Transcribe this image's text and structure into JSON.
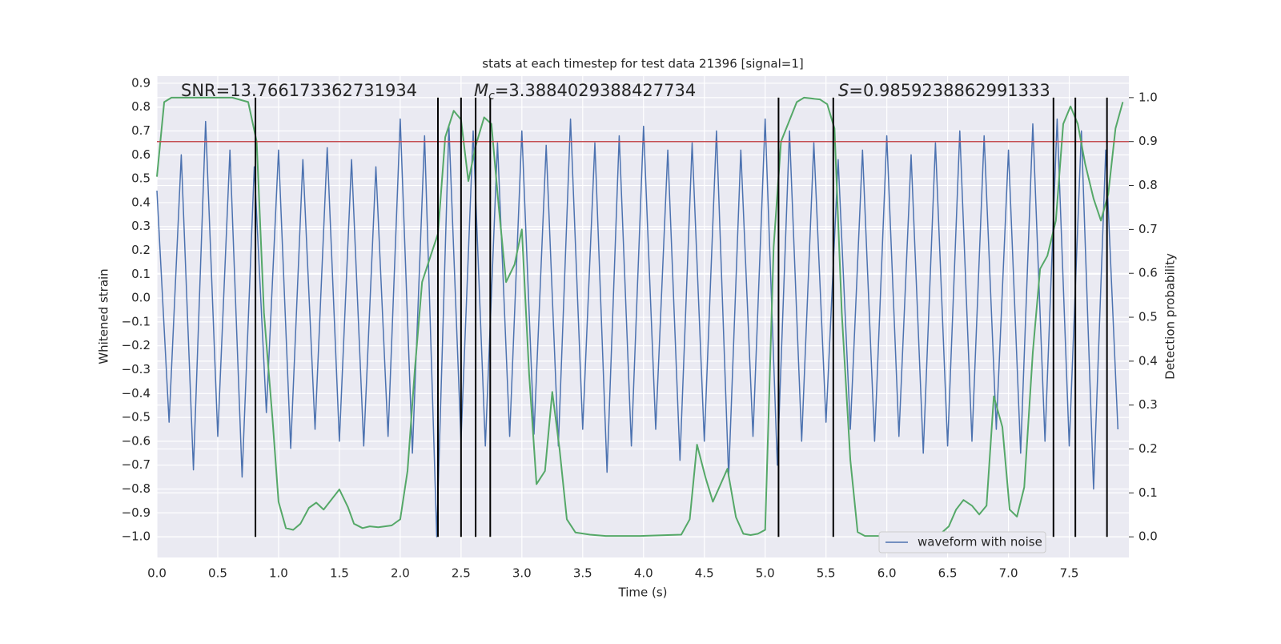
{
  "chart_data": {
    "type": "line",
    "title": "stats at each timestep for test data 21396 [signal=1]",
    "xlabel": "Time (s)",
    "ylabel": "Whitened strain",
    "y2label": "Detection probability",
    "annotations": [
      {
        "text": "SNR=13.766173362731934"
      },
      {
        "symbol": "M",
        "subscript": "c",
        "text": "=3.3884029388427734"
      },
      {
        "symbol": "S",
        "text": "=0.9859238862991333"
      }
    ],
    "xlim": [
      0,
      7.99
    ],
    "ylim": [
      -1.087,
      0.93
    ],
    "y2lim": [
      -0.047,
      1.049
    ],
    "xticks": [
      {
        "value": 0,
        "label": "0.0"
      },
      0.5,
      {
        "value": 1,
        "label": "1.0"
      },
      1.5,
      {
        "value": 2,
        "label": "2.0"
      },
      2.5,
      {
        "value": 3,
        "label": "3.0"
      },
      3.5,
      {
        "value": 4,
        "label": "4.0"
      },
      4.5,
      {
        "value": 5,
        "label": "5.0"
      },
      5.5,
      {
        "value": 6,
        "label": "6.0"
      },
      6.5,
      {
        "value": 7,
        "label": "7.0"
      },
      7.5
    ],
    "yticks": [
      0.9,
      0.8,
      0.7,
      0.6,
      0.5,
      0.4,
      0.3,
      0.2,
      0.1,
      {
        "value": 0,
        "label": "0.0"
      },
      {
        "value": -0.1,
        "label": "−0.1"
      },
      {
        "value": -0.2,
        "label": "−0.2"
      },
      {
        "value": -0.3,
        "label": "−0.3"
      },
      {
        "value": -0.4,
        "label": "−0.4"
      },
      {
        "value": -0.5,
        "label": "−0.5"
      },
      {
        "value": -0.6,
        "label": "−0.6"
      },
      {
        "value": -0.7,
        "label": "−0.7"
      },
      {
        "value": -0.8,
        "label": "−0.8"
      },
      {
        "value": -0.9,
        "label": "−0.9"
      },
      {
        "value": -1,
        "label": "−1.0"
      }
    ],
    "y2ticks": [
      {
        "value": 0,
        "label": "0.0"
      },
      0.1,
      0.2,
      0.3,
      0.4,
      0.5,
      0.6,
      0.7,
      0.8,
      0.9,
      {
        "value": 1,
        "label": "1.0"
      }
    ],
    "grid": true,
    "legend": "lower right",
    "series": [
      {
        "name": "waveform with noise",
        "color": "#4c72b0",
        "x": [
          0.0,
          0.1,
          0.2,
          0.3,
          0.4,
          0.5,
          0.6,
          0.7,
          0.8,
          0.9,
          1.0,
          1.1,
          1.2,
          1.3,
          1.4,
          1.5,
          1.6,
          1.7,
          1.8,
          1.9,
          2.0,
          2.1,
          2.2,
          2.3,
          2.4,
          2.5,
          2.6,
          2.7,
          2.8,
          2.9,
          3.0,
          3.1,
          3.2,
          3.3,
          3.4,
          3.5,
          3.6,
          3.7,
          3.8,
          3.9,
          4.0,
          4.1,
          4.2,
          4.3,
          4.4,
          4.5,
          4.6,
          4.7,
          4.8,
          4.9,
          5.0,
          5.1,
          5.2,
          5.3,
          5.4,
          5.5,
          5.6,
          5.7,
          5.8,
          5.9,
          6.0,
          6.1,
          6.2,
          6.3,
          6.4,
          6.5,
          6.6,
          6.7,
          6.8,
          6.9,
          7.0,
          7.1,
          7.2,
          7.3,
          7.4,
          7.5,
          7.6,
          7.7,
          7.8,
          7.9
        ],
        "values": [
          0.45,
          -0.52,
          0.6,
          -0.72,
          0.74,
          -0.58,
          0.62,
          -0.75,
          0.55,
          -0.48,
          0.62,
          -0.63,
          0.58,
          -0.55,
          0.63,
          -0.6,
          0.58,
          -0.62,
          0.55,
          -0.58,
          0.75,
          -0.65,
          0.68,
          -1.0,
          0.72,
          -0.6,
          0.7,
          -0.62,
          0.65,
          -0.58,
          0.7,
          -0.57,
          0.64,
          -0.62,
          0.75,
          -0.55,
          0.65,
          -0.73,
          0.68,
          -0.62,
          0.72,
          -0.55,
          0.62,
          -0.68,
          0.65,
          -0.6,
          0.7,
          -0.75,
          0.62,
          -0.58,
          0.75,
          -0.7,
          0.7,
          -0.6,
          0.65,
          -0.52,
          0.58,
          -0.55,
          0.62,
          -0.6,
          0.68,
          -0.58,
          0.6,
          -0.65,
          0.65,
          -0.62,
          0.7,
          -0.6,
          0.68,
          -0.55,
          0.62,
          -0.65,
          0.73,
          -0.6,
          0.75,
          -0.62,
          0.7,
          -0.8,
          0.62,
          -0.55
        ]
      },
      {
        "color": "#55a868",
        "axis": "y2",
        "x": [
          0,
          0.06,
          0.12,
          0.62,
          0.75,
          0.82,
          0.88,
          0.95,
          1.0,
          1.06,
          1.12,
          1.18,
          1.25,
          1.31,
          1.37,
          1.5,
          1.57,
          1.62,
          1.69,
          1.75,
          1.82,
          1.93,
          2.0,
          2.06,
          2.12,
          2.18,
          2.25,
          2.31,
          2.37,
          2.44,
          2.5,
          2.56,
          2.62,
          2.69,
          2.75,
          2.81,
          2.87,
          2.94,
          3.0,
          3.06,
          3.12,
          3.19,
          3.25,
          3.31,
          3.37,
          3.44,
          3.56,
          3.69,
          3.97,
          4.2,
          4.31,
          4.38,
          4.44,
          4.51,
          4.57,
          4.69,
          4.76,
          4.82,
          4.88,
          4.94,
          5.0,
          5.07,
          5.13,
          5.26,
          5.32,
          5.45,
          5.51,
          5.57,
          5.63,
          5.7,
          5.76,
          5.82,
          6.13,
          6.38,
          6.45,
          6.51,
          6.57,
          6.63,
          6.7,
          6.76,
          6.82,
          6.88,
          6.95,
          7.01,
          7.07,
          7.13,
          7.2,
          7.26,
          7.32,
          7.39,
          7.45,
          7.51,
          7.57,
          7.63,
          7.7,
          7.76,
          7.82,
          7.88,
          7.94
        ],
        "values": [
          0.82,
          0.99,
          1.0,
          1.0,
          0.99,
          0.9,
          0.51,
          0.27,
          0.08,
          0.02,
          0.016,
          0.03,
          0.066,
          0.078,
          0.062,
          0.108,
          0.068,
          0.03,
          0.02,
          0.024,
          0.022,
          0.026,
          0.04,
          0.15,
          0.38,
          0.58,
          0.64,
          0.69,
          0.91,
          0.97,
          0.95,
          0.81,
          0.89,
          0.955,
          0.94,
          0.75,
          0.58,
          0.62,
          0.7,
          0.37,
          0.12,
          0.15,
          0.33,
          0.2,
          0.04,
          0.01,
          0.005,
          0.002,
          0.002,
          0.004,
          0.005,
          0.04,
          0.21,
          0.135,
          0.08,
          0.155,
          0.045,
          0.007,
          0.004,
          0.007,
          0.016,
          0.66,
          0.9,
          0.99,
          1.0,
          0.996,
          0.985,
          0.93,
          0.51,
          0.175,
          0.011,
          0.002,
          0.002,
          0.005,
          0.009,
          0.024,
          0.062,
          0.084,
          0.071,
          0.051,
          0.071,
          0.32,
          0.25,
          0.062,
          0.046,
          0.113,
          0.42,
          0.61,
          0.64,
          0.72,
          0.94,
          0.98,
          0.94,
          0.85,
          0.77,
          0.72,
          0.78,
          0.93,
          0.99
        ]
      }
    ],
    "hlines": [
      {
        "value": 0.9,
        "axis": "y2",
        "color": "#c44e52"
      }
    ],
    "vlines": {
      "x": [
        0.81,
        2.31,
        2.5,
        2.62,
        2.74,
        5.11,
        5.56,
        7.37,
        7.55,
        7.81
      ],
      "ymin": 0,
      "ymax": 1,
      "axis": "y2",
      "color": "#000000"
    }
  }
}
